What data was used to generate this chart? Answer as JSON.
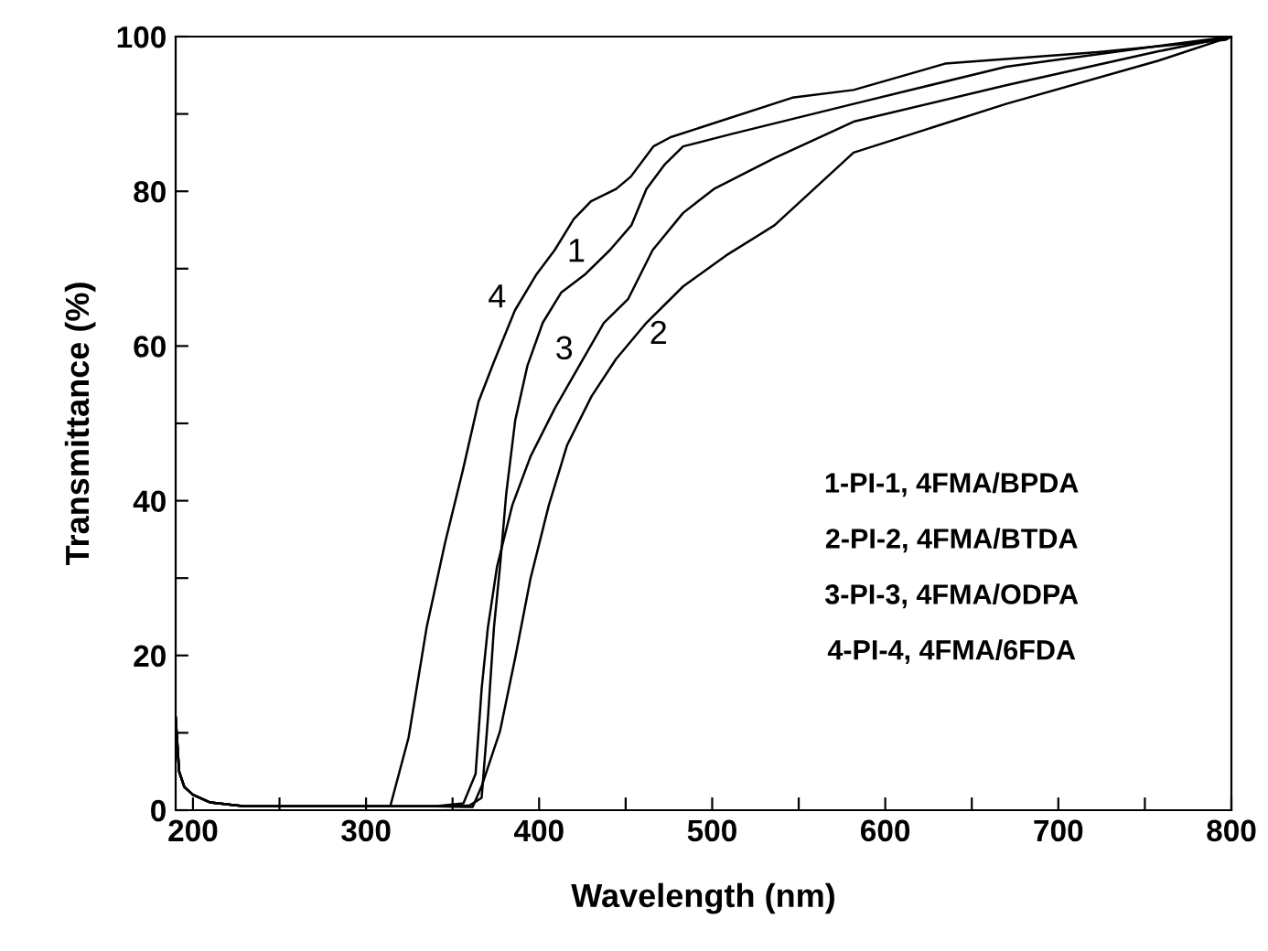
{
  "chart_data": {
    "type": "line",
    "xlabel": "Wavelength (nm)",
    "ylabel": "Transmittance (%)",
    "xlim": [
      190,
      800
    ],
    "ylim": [
      0,
      100
    ],
    "xticks": [
      200,
      {
        "value": 250,
        "label": null
      },
      300,
      {
        "value": 350,
        "label": null
      },
      400,
      {
        "value": 450,
        "label": null
      },
      500,
      {
        "value": 550,
        "label": null
      },
      600,
      {
        "value": 650,
        "label": null
      },
      700,
      {
        "value": 750,
        "label": null
      },
      800
    ],
    "yticks": [
      0,
      {
        "value": 10,
        "label": null
      },
      20,
      {
        "value": 30,
        "label": null
      },
      40,
      {
        "value": 50,
        "label": null
      },
      60,
      {
        "value": 70,
        "label": null
      },
      80,
      {
        "value": 90,
        "label": null
      },
      100
    ],
    "grid": false,
    "legend": false,
    "marker": "none",
    "line_style": "solid",
    "series": [
      {
        "name": "1",
        "color": "#000000",
        "x": [
          190,
          192,
          195,
          200,
          210,
          230,
          300,
          340,
          359.8,
          366.8,
          370.4,
          373.9,
          377.4,
          381,
          386.2,
          393.3,
          402.1,
          412.7,
          426.8,
          440.9,
          453.3,
          462,
          472.7,
          483.2,
          511,
          581.7,
          669.8,
          758,
          800
        ],
        "values": [
          12,
          5,
          3,
          2,
          1,
          0.5,
          0.5,
          0.5,
          0.6,
          1.6,
          11.8,
          23.6,
          31.5,
          40.9,
          50.4,
          57.5,
          63,
          66.9,
          69.3,
          72.4,
          75.6,
          80.3,
          83.5,
          85.8,
          87.4,
          91.3,
          96.1,
          98.8,
          100
        ]
      },
      {
        "name": "2",
        "color": "#000000",
        "x": [
          190,
          192,
          195,
          200,
          210,
          230,
          300,
          340,
          361.6,
          366.8,
          377.4,
          386.2,
          395,
          405.6,
          416.2,
          430.3,
          444.4,
          462,
          483.2,
          508,
          536,
          581.7,
          669.8,
          758,
          800
        ],
        "values": [
          12,
          5,
          3,
          2,
          1,
          0.5,
          0.5,
          0.5,
          0.4,
          3.1,
          10.2,
          19.7,
          29.9,
          39.4,
          47.2,
          53.5,
          58.3,
          63,
          67.7,
          71.7,
          75.6,
          85,
          91.3,
          96.9,
          100
        ]
      },
      {
        "name": "3",
        "color": "#000000",
        "x": [
          190,
          192,
          195,
          200,
          210,
          230,
          300,
          340,
          356.3,
          363.3,
          366.8,
          370.4,
          375.7,
          384.5,
          395,
          409.2,
          423.3,
          437.4,
          451.5,
          465.6,
          483.2,
          501,
          536,
          581.7,
          669.8,
          758,
          800
        ],
        "values": [
          12,
          5,
          3,
          2,
          1,
          0.5,
          0.5,
          0.5,
          0.9,
          4.7,
          15.7,
          23.6,
          31.5,
          39.4,
          45.7,
          52,
          57.5,
          63,
          66.1,
          72.4,
          77.2,
          80.3,
          84.3,
          89,
          93.7,
          98.1,
          100
        ]
      },
      {
        "name": "4",
        "color": "#000000",
        "x": [
          190,
          192,
          195,
          200,
          210,
          230,
          300,
          314,
          324.6,
          335,
          345.7,
          356,
          365,
          374,
          386,
          398.6,
          409,
          420,
          430,
          444.5,
          453,
          466,
          476,
          546.3,
          581.7,
          634.6,
          722.8,
          796.8,
          800
        ],
        "values": [
          12,
          5,
          3,
          2,
          1,
          0.5,
          0.5,
          0.5,
          9.4,
          23.6,
          34.6,
          44,
          52.8,
          58,
          64.6,
          69.3,
          72.4,
          76.4,
          78.7,
          80.3,
          81.9,
          85.8,
          87,
          92.1,
          93.1,
          96.5,
          98,
          99.6,
          100
        ]
      }
    ],
    "annotations": [
      "1-PI-1, 4FMA/BPDA",
      "2-PI-2, 4FMA/BTDA",
      "3-PI-3, 4FMA/ODPA",
      "4-PI-4, 4FMA/6FDA"
    ]
  }
}
